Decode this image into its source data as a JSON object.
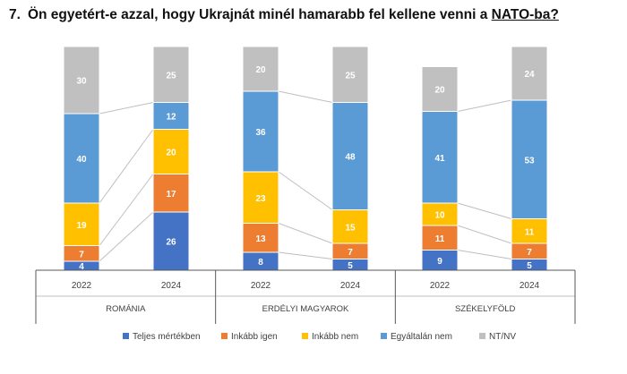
{
  "title": {
    "number": "7.",
    "text_before": "Ön egyetért-e azzal, hogy Ukrajnát minél hamarabb fel kellene venni a ",
    "underlined": "NATO-ba?"
  },
  "chart_data": {
    "type": "bar",
    "stacked": true,
    "percent": true,
    "groups": [
      {
        "label": "ROMÁNIA",
        "categories": [
          "2022",
          "2024"
        ]
      },
      {
        "label": "ERDÉLYI MAGYAROK",
        "categories": [
          "2022",
          "2024"
        ]
      },
      {
        "label": "SZÉKELYFÖLD",
        "categories": [
          "2022",
          "2024"
        ]
      }
    ],
    "series": [
      {
        "name": "Teljes mértékben",
        "color": "#4472c4",
        "values": [
          4,
          26,
          8,
          5,
          9,
          5
        ]
      },
      {
        "name": "Inkább igen",
        "color": "#ed7d31",
        "values": [
          7,
          17,
          13,
          7,
          11,
          7
        ]
      },
      {
        "name": "Inkább nem",
        "color": "#ffc000",
        "values": [
          19,
          20,
          23,
          15,
          10,
          11
        ]
      },
      {
        "name": "Egyáltalán nem",
        "color": "#5b9bd5",
        "values": [
          40,
          12,
          36,
          48,
          41,
          53
        ]
      },
      {
        "name": "NT/NV",
        "color": "#c0c0c0",
        "values": [
          30,
          25,
          20,
          25,
          20,
          24
        ]
      }
    ],
    "connector_lines": true,
    "legend": "bottom",
    "grid": false
  }
}
